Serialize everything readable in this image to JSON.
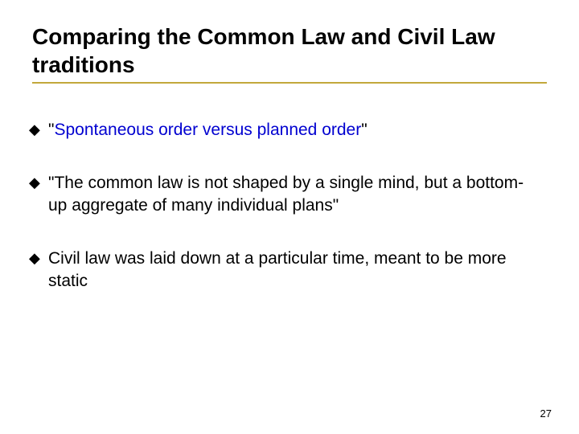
{
  "title": "Comparing the Common Law and Civil Law traditions",
  "rule_color": "#c2a83c",
  "bullet_glyph": "◆",
  "bullets": {
    "b0": {
      "open_quote": "\"",
      "phrase": "Spontaneous order versus planned order",
      "close_quote": "\""
    },
    "b1": {
      "text": "\"The common law is not shaped by a single mind, but a bottom-up aggregate of many individual plans\""
    },
    "b2": {
      "text": "Civil law was laid down at a particular time, meant to be more static"
    }
  },
  "page_number": "27"
}
